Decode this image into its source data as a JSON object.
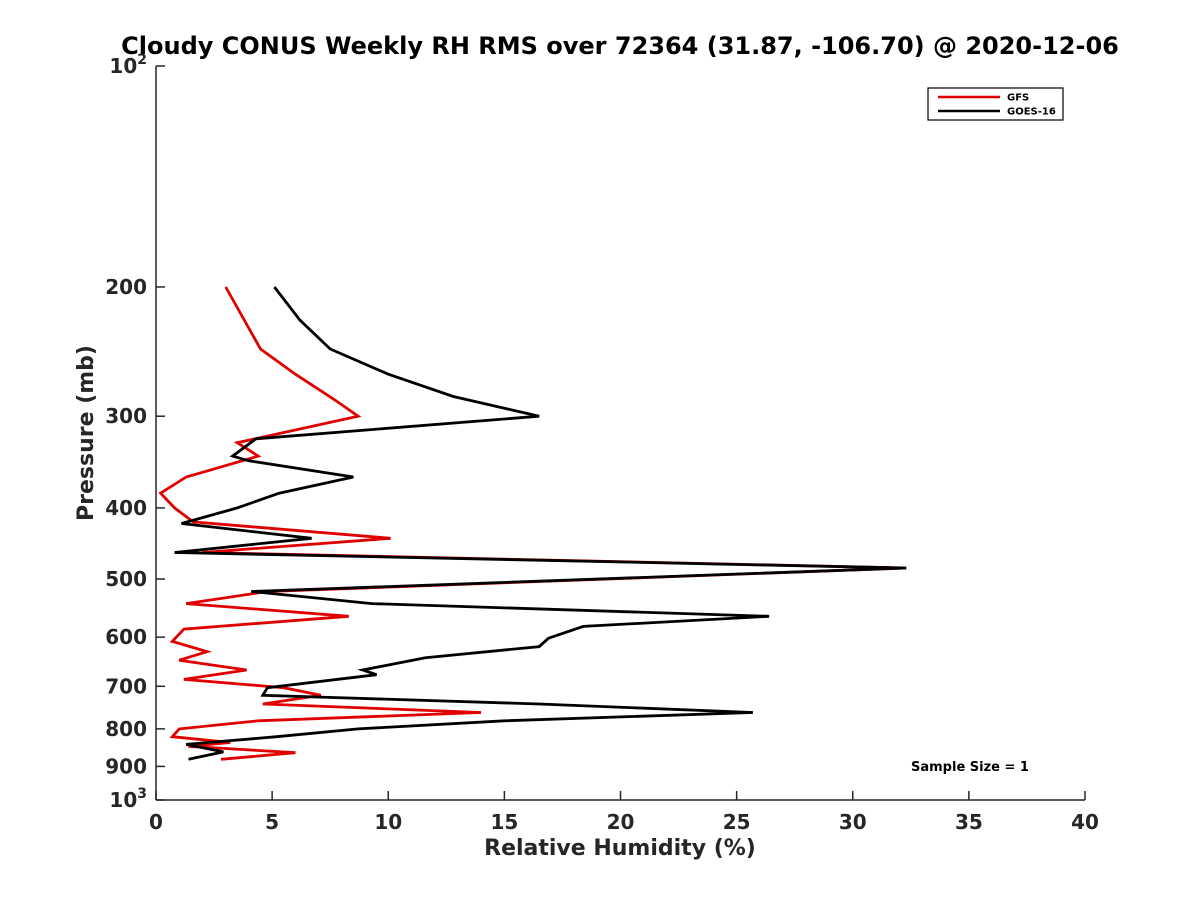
{
  "chart_data": {
    "type": "line",
    "title": "Cloudy CONUS Weekly RH RMS over 72364 (31.87, -106.70) @ 2020-12-06",
    "xlabel": "Relative Humidity (%)",
    "ylabel": "Pressure (mb)",
    "xlim": [
      0,
      40
    ],
    "ylim": [
      100,
      1000
    ],
    "yscale": "log",
    "y_reversed": true,
    "x_ticks": [
      "0",
      "5",
      "10",
      "15",
      "20",
      "25",
      "30",
      "35",
      "40"
    ],
    "y_ticks": [
      {
        "value": 100,
        "base": "10",
        "exp": "2"
      },
      {
        "value": 200,
        "label": "200"
      },
      {
        "value": 300,
        "label": "300"
      },
      {
        "value": 400,
        "label": "400"
      },
      {
        "value": 500,
        "label": "500"
      },
      {
        "value": 600,
        "label": "600"
      },
      {
        "value": 700,
        "label": "700"
      },
      {
        "value": 800,
        "label": "800"
      },
      {
        "value": 900,
        "label": "900"
      },
      {
        "value": 1000,
        "base": "10",
        "exp": "3"
      }
    ],
    "grid": false,
    "legend_position": "top-right",
    "series": [
      {
        "name": "GFS",
        "color": "#e00000",
        "points": [
          [
            3.0,
            200
          ],
          [
            4.5,
            243
          ],
          [
            6.0,
            263
          ],
          [
            7.7,
            285
          ],
          [
            8.7,
            300
          ],
          [
            3.5,
            326
          ],
          [
            4.4,
            340
          ],
          [
            1.3,
            363
          ],
          [
            0.2,
            382
          ],
          [
            0.8,
            400
          ],
          [
            1.6,
            418
          ],
          [
            10.1,
            440
          ],
          [
            2.0,
            460
          ],
          [
            32.3,
            483
          ],
          [
            4.8,
            520
          ],
          [
            1.3,
            540
          ],
          [
            8.3,
            562
          ],
          [
            1.2,
            585
          ],
          [
            0.7,
            608
          ],
          [
            2.2,
            628
          ],
          [
            1.0,
            645
          ],
          [
            3.9,
            665
          ],
          [
            1.2,
            685
          ],
          [
            5.5,
            703
          ],
          [
            7.1,
            720
          ],
          [
            4.6,
            740
          ],
          [
            14.0,
            760
          ],
          [
            4.4,
            780
          ],
          [
            1.0,
            800
          ],
          [
            0.7,
            820
          ],
          [
            3.2,
            835
          ],
          [
            1.4,
            845
          ],
          [
            6.0,
            862
          ],
          [
            2.8,
            880
          ]
        ]
      },
      {
        "name": "GOES-16",
        "color": "#000000",
        "points": [
          [
            5.1,
            200
          ],
          [
            6.2,
            222
          ],
          [
            7.5,
            243
          ],
          [
            10.0,
            263
          ],
          [
            12.8,
            282
          ],
          [
            16.5,
            300
          ],
          [
            4.3,
            322
          ],
          [
            3.3,
            340
          ],
          [
            4.0,
            345
          ],
          [
            8.5,
            363
          ],
          [
            5.3,
            382
          ],
          [
            3.5,
            400
          ],
          [
            1.1,
            420
          ],
          [
            6.7,
            440
          ],
          [
            0.8,
            460
          ],
          [
            32.3,
            483
          ],
          [
            4.1,
            520
          ],
          [
            9.3,
            540
          ],
          [
            26.4,
            562
          ],
          [
            18.4,
            580
          ],
          [
            16.9,
            602
          ],
          [
            16.5,
            618
          ],
          [
            11.6,
            640
          ],
          [
            8.9,
            665
          ],
          [
            9.5,
            675
          ],
          [
            4.8,
            703
          ],
          [
            4.6,
            720
          ],
          [
            7.6,
            725
          ],
          [
            16.5,
            740
          ],
          [
            25.7,
            760
          ],
          [
            15.0,
            780
          ],
          [
            8.7,
            800
          ],
          [
            5.2,
            820
          ],
          [
            1.3,
            840
          ],
          [
            2.9,
            860
          ],
          [
            1.4,
            880
          ]
        ]
      }
    ],
    "annotation": "Sample Size = 1"
  }
}
